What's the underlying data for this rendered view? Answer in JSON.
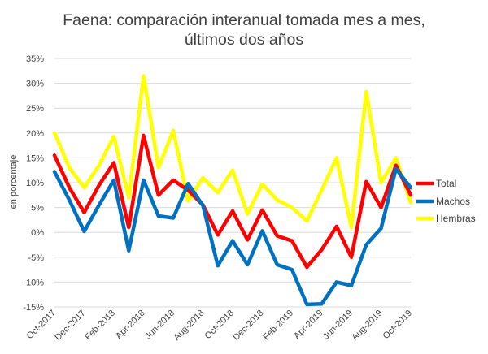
{
  "chart_data": {
    "type": "line",
    "title_lines": [
      "Faena: comparación interanual tomada mes a mes,",
      "últimos dos años"
    ],
    "xlabel": "",
    "ylabel": "en porcentaje",
    "ylim": [
      -15,
      35
    ],
    "yticks": [
      35,
      30,
      25,
      20,
      15,
      10,
      5,
      0,
      -5,
      -10,
      -15
    ],
    "ytick_labels": [
      "35%",
      "30%",
      "25%",
      "20%",
      "15%",
      "10%",
      "5%",
      "0%",
      "-5%",
      "-10%",
      "-15%"
    ],
    "categories": [
      "Oct-2017",
      "Nov-2017",
      "Dec-2017",
      "Jan-2018",
      "Feb-2018",
      "Mar-2018",
      "Apr-2018",
      "May-2018",
      "Jun-2018",
      "Jul-2018",
      "Aug-2018",
      "Sep-2018",
      "Oct-2018",
      "Nov-2018",
      "Dec-2018",
      "Jan-2019",
      "Feb-2019",
      "Mar-2019",
      "Apr-2019",
      "May-2019",
      "Jun-2019",
      "Jul-2019",
      "Aug-2019",
      "Sep-2019",
      "Oct-2019"
    ],
    "tick_labels": [
      "Oct-2017",
      "",
      "Dec-2017",
      "",
      "Feb-2018",
      "",
      "Apr-2018",
      "",
      "Jun-2018",
      "",
      "Aug-2018",
      "",
      "Oct-2018",
      "",
      "Dec-2018",
      "",
      "Feb-2019",
      "",
      "Apr-2019",
      "",
      "Jun-2019",
      "",
      "Aug-2019",
      "",
      "Oct-2019"
    ],
    "grid": true,
    "legend_position": "right",
    "series": [
      {
        "name": "Total",
        "color": "#ff0000",
        "values": [
          15.5,
          9,
          4,
          9.5,
          14,
          1,
          19.5,
          7.5,
          10.5,
          8.5,
          5.5,
          -0.5,
          4.3,
          -1.5,
          4.5,
          -0.7,
          -1.7,
          -7,
          -3.5,
          1.2,
          -5,
          10.2,
          5,
          13.5,
          7.5
        ]
      },
      {
        "name": "Machos",
        "color": "#0070c0",
        "values": [
          12.2,
          6.5,
          0.2,
          5.5,
          10.5,
          -3.7,
          10.5,
          3.3,
          2.9,
          9.8,
          5.4,
          -6.7,
          -1.7,
          -6.5,
          0.3,
          -6.5,
          -7.5,
          -14.5,
          -14.4,
          -10,
          -10.7,
          -2.5,
          0.8,
          12.8,
          9
        ]
      },
      {
        "name": "Hembras",
        "color": "#ffff00",
        "values": [
          20,
          13,
          9,
          13.5,
          19.3,
          7,
          31.5,
          13,
          20.5,
          6.3,
          11,
          8,
          12.5,
          3.7,
          9.7,
          6.5,
          5,
          2.3,
          8.5,
          15,
          1,
          28.3,
          10,
          15,
          6
        ]
      }
    ]
  }
}
